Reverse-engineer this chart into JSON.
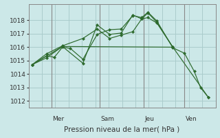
{
  "background_color": "#cce8e8",
  "grid_color": "#aacccc",
  "line_color": "#2d6a2d",
  "xlabel": "Pression niveau de la mer( hPa )",
  "ylim": [
    1011.5,
    1019.2
  ],
  "yticks": [
    1012,
    1013,
    1014,
    1015,
    1016,
    1017,
    1018
  ],
  "day_ticks": [
    0.13,
    0.4,
    0.645,
    0.875
  ],
  "day_labels": [
    "Mer",
    "Sam",
    "Jeu",
    "Ven"
  ],
  "series": [
    {
      "x": [
        0.02,
        0.1,
        0.145,
        0.19,
        0.235,
        0.305,
        0.385,
        0.455,
        0.52,
        0.585,
        0.635,
        0.67,
        0.72,
        0.81,
        0.875,
        0.93,
        0.965,
        1.01
      ],
      "y": [
        1014.7,
        1015.35,
        1015.25,
        1016.0,
        1015.9,
        1015.1,
        1016.95,
        1017.3,
        1017.35,
        1018.35,
        1018.2,
        1018.6,
        1017.95,
        1015.95,
        1015.55,
        1014.2,
        1013.0,
        1012.25
      ]
    },
    {
      "x": [
        0.02,
        0.1,
        0.19,
        0.305,
        0.385,
        0.455,
        0.52,
        0.585,
        0.635,
        0.67,
        0.72,
        0.81
      ],
      "y": [
        1014.7,
        1015.2,
        1016.05,
        1014.8,
        1017.65,
        1016.95,
        1017.05,
        1018.4,
        1018.1,
        1018.55,
        1017.85,
        1016.0
      ]
    },
    {
      "x": [
        0.02,
        0.1,
        0.19,
        0.305,
        0.385,
        0.455,
        0.52,
        0.585,
        0.635,
        0.67,
        0.72,
        0.81
      ],
      "y": [
        1014.7,
        1015.5,
        1016.1,
        1016.65,
        1017.35,
        1016.65,
        1016.9,
        1017.15,
        1018.1,
        1018.2,
        1017.8,
        1016.0
      ]
    },
    {
      "x": [
        0.02,
        0.19,
        0.81,
        1.01
      ],
      "y": [
        1014.7,
        1016.05,
        1016.0,
        1012.25
      ]
    }
  ]
}
